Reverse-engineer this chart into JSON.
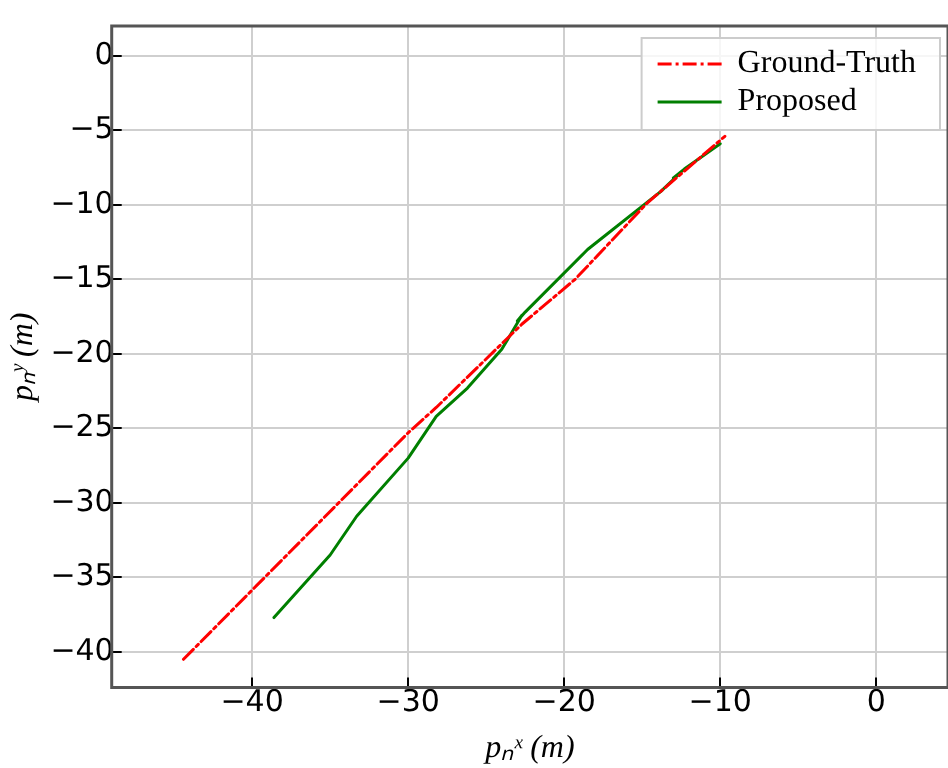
{
  "chart_data": {
    "type": "line",
    "xlabel": "pₙˣ (m)",
    "ylabel": "pₙʸ (m)",
    "xlim": [
      -49,
      4.6
    ],
    "ylim": [
      -42.4,
      2
    ],
    "xticks": [
      -40,
      -30,
      -20,
      -10,
      0
    ],
    "yticks": [
      -40,
      -35,
      -30,
      -25,
      -20,
      -15,
      -10,
      -5,
      0
    ],
    "grid": true,
    "legend": "top right",
    "marker": "none",
    "series": [
      {
        "name": "Ground-Truth",
        "color": "#ff0000",
        "line_style": "dashed",
        "x": [
          -44.4,
          -30,
          -28.2,
          -22.7,
          -19.3,
          -14.7,
          -9.7
        ],
        "values": [
          -40.5,
          -25.3,
          -23.6,
          -18,
          -15,
          -9.9,
          -5.4
        ]
      },
      {
        "name": "Proposed",
        "color": "#007f00",
        "line_style": "solid",
        "x": [
          -38.6,
          -35,
          -33.3,
          -30,
          -28.2,
          -26.2,
          -24,
          -22.7,
          -23,
          -22.5,
          -18.5,
          -13.8,
          -12.5,
          -13,
          -12.3,
          -10
        ],
        "values": [
          -37.7,
          -33.5,
          -30.9,
          -27,
          -24.2,
          -22.3,
          -19.7,
          -17.4,
          -17.8,
          -17.2,
          -13,
          -9.1,
          -7.8,
          -8.2,
          -7.6,
          -5.9
        ]
      }
    ]
  }
}
